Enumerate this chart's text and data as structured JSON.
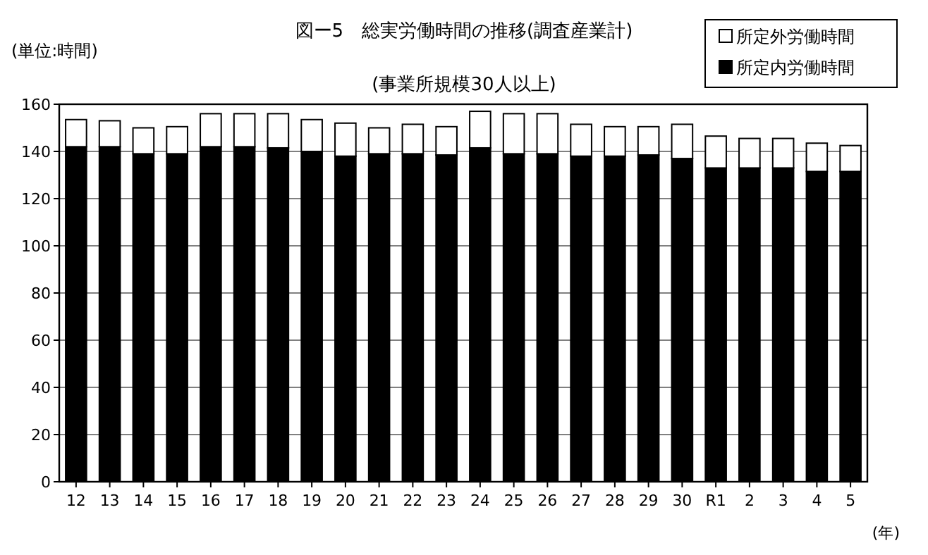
{
  "chart_data": {
    "type": "bar",
    "title": "図ー5　総実労働時間の推移(調査産業計)",
    "subtitle": "(事業所規模30人以上)",
    "ylabel": "(単位:時間)",
    "xlabel": "(年)",
    "categories": [
      "12",
      "13",
      "14",
      "15",
      "16",
      "17",
      "18",
      "19",
      "20",
      "21",
      "22",
      "23",
      "24",
      "25",
      "26",
      "27",
      "28",
      "29",
      "30",
      "R1",
      "2",
      "3",
      "4",
      "5"
    ],
    "stacked": true,
    "series": [
      {
        "name": "所定内労働時間",
        "color": "#000000",
        "values": [
          142,
          142,
          139,
          139,
          142,
          142,
          141.5,
          140,
          138,
          139,
          139,
          138.5,
          141.5,
          139,
          139,
          138,
          138,
          138.5,
          137,
          133,
          133,
          133,
          131.5,
          131.5
        ]
      },
      {
        "name": "所定外労働時間",
        "color": "#ffffff",
        "values": [
          11.5,
          11,
          11,
          11.5,
          14,
          14,
          14.5,
          13.5,
          14,
          11,
          12.5,
          12,
          15.5,
          17,
          17,
          13.5,
          12.5,
          12,
          14.5,
          13.5,
          12.5,
          12.5,
          12,
          11
        ]
      }
    ],
    "ylim": [
      0,
      160
    ],
    "yticks": [
      0,
      20,
      40,
      60,
      80,
      100,
      120,
      140,
      160
    ],
    "grid": "y",
    "legend": "top right"
  }
}
